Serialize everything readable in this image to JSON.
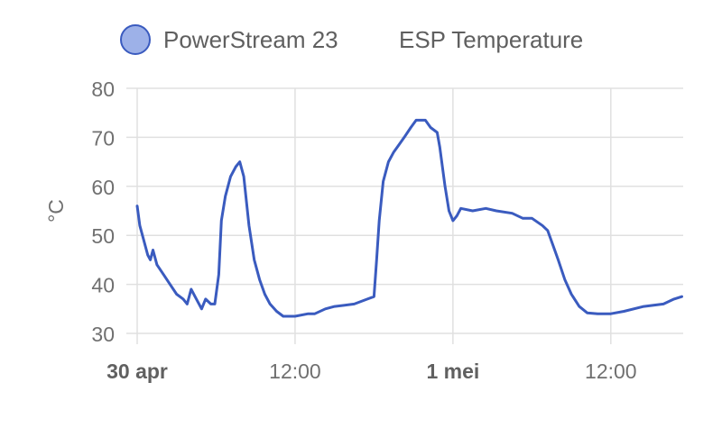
{
  "chart_data": {
    "type": "line",
    "title": "",
    "ylabel": "°C",
    "xlabel": "",
    "ylim": [
      30,
      80
    ],
    "yticks": [
      30,
      40,
      50,
      60,
      70,
      80
    ],
    "grid": true,
    "legend_placement": "top",
    "x_unit": "hours since 30 apr 00:00",
    "xlim": [
      0,
      41.5
    ],
    "xticks": [
      {
        "x": 0,
        "label": "30 apr",
        "bold": true
      },
      {
        "x": 12,
        "label": "12:00",
        "bold": false
      },
      {
        "x": 24,
        "label": "1 mei",
        "bold": true
      },
      {
        "x": 36,
        "label": "12:00",
        "bold": false
      }
    ],
    "series": [
      {
        "name": "PowerStream 23",
        "legend_text": "PowerStream 23",
        "color": "#3a5bbf",
        "fill": "#9db1e8",
        "points": [
          [
            0,
            56
          ],
          [
            0.2,
            52
          ],
          [
            0.5,
            49
          ],
          [
            0.8,
            46
          ],
          [
            1.0,
            45
          ],
          [
            1.2,
            47
          ],
          [
            1.5,
            44
          ],
          [
            2.0,
            42
          ],
          [
            2.5,
            40
          ],
          [
            3.0,
            38
          ],
          [
            3.5,
            37
          ],
          [
            3.8,
            36
          ],
          [
            4.1,
            39
          ],
          [
            4.5,
            37
          ],
          [
            4.9,
            35
          ],
          [
            5.2,
            37
          ],
          [
            5.6,
            36
          ],
          [
            5.9,
            36
          ],
          [
            6.2,
            42
          ],
          [
            6.4,
            53
          ],
          [
            6.7,
            58
          ],
          [
            7.1,
            62
          ],
          [
            7.5,
            64
          ],
          [
            7.8,
            65
          ],
          [
            8.1,
            62
          ],
          [
            8.5,
            52
          ],
          [
            8.9,
            45
          ],
          [
            9.3,
            41
          ],
          [
            9.7,
            38
          ],
          [
            10.1,
            36
          ],
          [
            10.6,
            34.5
          ],
          [
            11.1,
            33.5
          ],
          [
            12.0,
            33.5
          ],
          [
            13.0,
            34
          ],
          [
            13.5,
            34
          ],
          [
            14.3,
            35
          ],
          [
            15.0,
            35.5
          ],
          [
            16.5,
            36
          ],
          [
            17.5,
            37
          ],
          [
            18.0,
            37.5
          ],
          [
            18.2,
            45
          ],
          [
            18.4,
            53
          ],
          [
            18.7,
            61
          ],
          [
            19.1,
            65
          ],
          [
            19.5,
            67
          ],
          [
            19.9,
            68.5
          ],
          [
            20.3,
            70
          ],
          [
            20.8,
            72
          ],
          [
            21.2,
            73.5
          ],
          [
            21.9,
            73.5
          ],
          [
            22.3,
            72
          ],
          [
            22.8,
            71
          ],
          [
            23.0,
            68
          ],
          [
            23.4,
            60
          ],
          [
            23.7,
            55
          ],
          [
            24.0,
            53
          ],
          [
            24.3,
            54
          ],
          [
            24.6,
            55.5
          ],
          [
            25.5,
            55
          ],
          [
            26.5,
            55.5
          ],
          [
            27.3,
            55
          ],
          [
            28.5,
            54.5
          ],
          [
            29.3,
            53.5
          ],
          [
            30.0,
            53.5
          ],
          [
            30.8,
            52
          ],
          [
            31.2,
            51
          ],
          [
            31.6,
            48
          ],
          [
            32.0,
            45
          ],
          [
            32.5,
            41
          ],
          [
            33.0,
            38
          ],
          [
            33.6,
            35.5
          ],
          [
            34.2,
            34.2
          ],
          [
            35.0,
            34
          ],
          [
            36.0,
            34
          ],
          [
            37.0,
            34.5
          ],
          [
            38.5,
            35.5
          ],
          [
            40.0,
            36
          ],
          [
            40.8,
            37
          ],
          [
            41.4,
            37.5
          ]
        ]
      },
      {
        "name": "ESP Temperature",
        "legend_text": "ESP Temperature"
      }
    ]
  }
}
